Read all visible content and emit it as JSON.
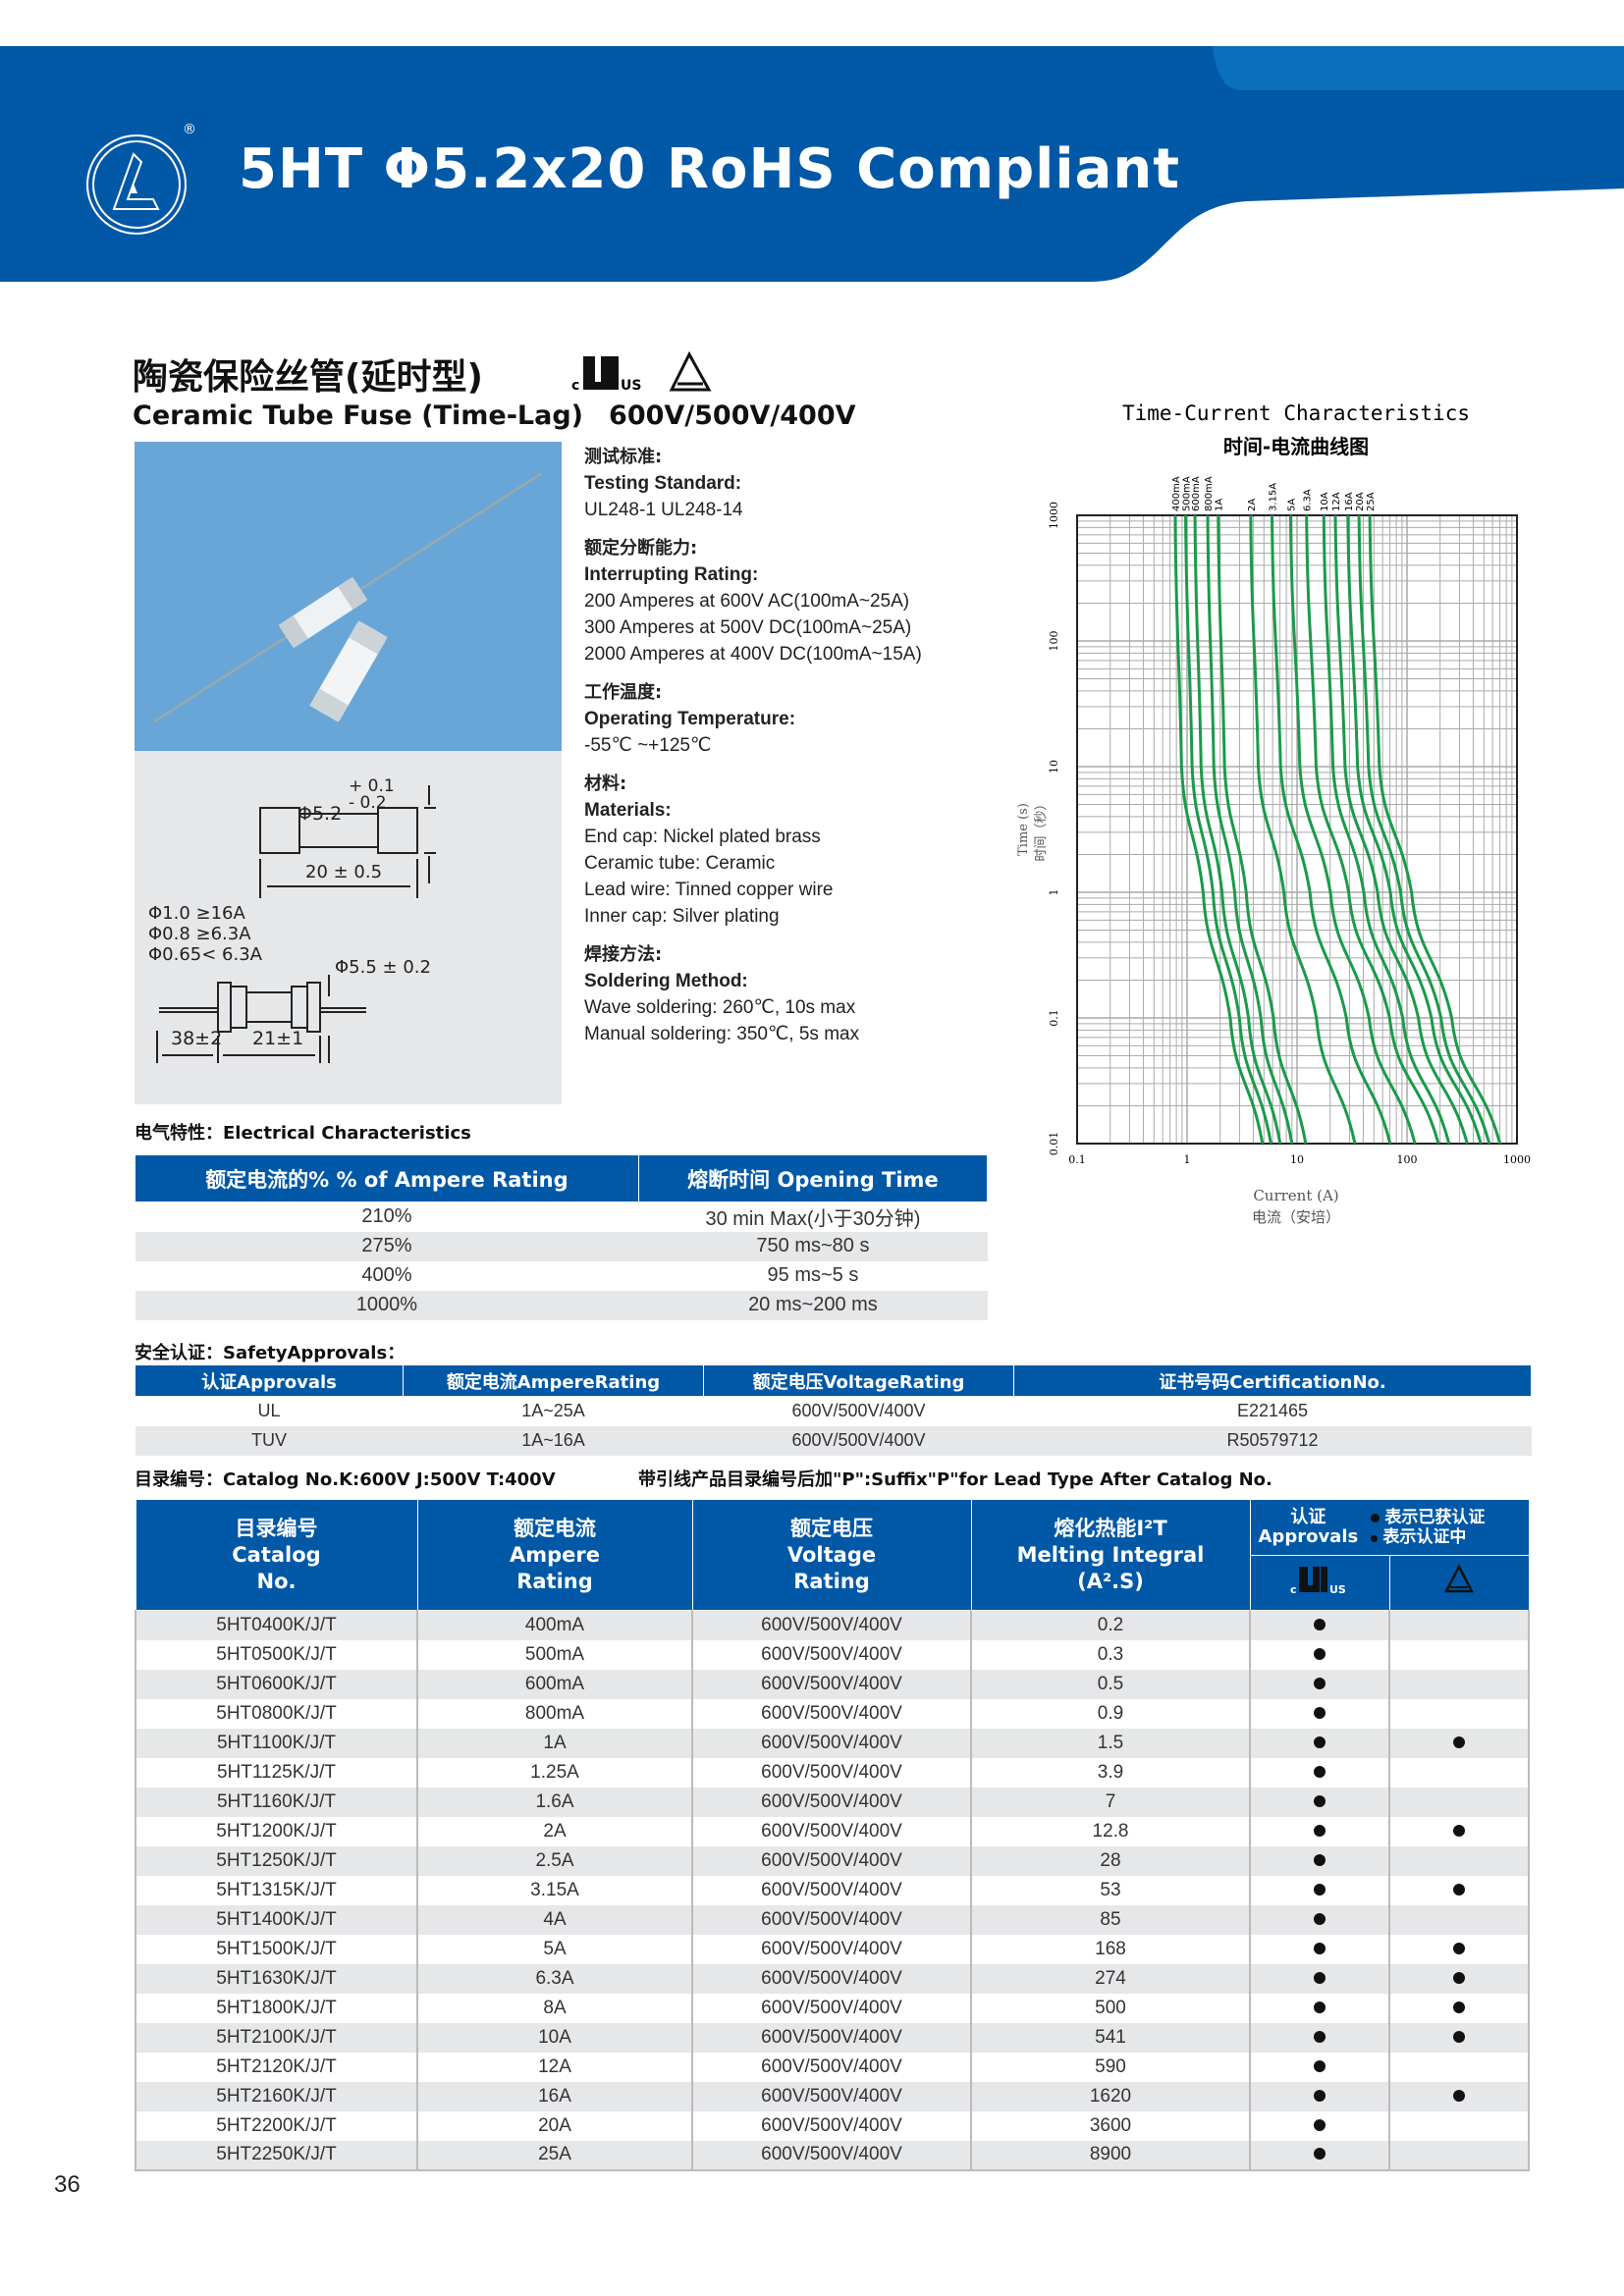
{
  "header": {
    "title": "5HT Φ5.2x20 RoHS Compliant",
    "brand_color": "#0058a6",
    "registered_mark": "®"
  },
  "product": {
    "title_cn": "陶瓷保险丝管(延时型)",
    "title_en": "Ceramic Tube Fuse (Time-Lag)",
    "voltage": "600V/500V/400V",
    "cert_icons": [
      "cUL-us-icon",
      "tuv-triangle-icon"
    ]
  },
  "drawing": {
    "dia_cap": "Φ5.2",
    "tol_plus": "+ 0.1",
    "tol_minus": "- 0.2",
    "length": "20 ± 0.5",
    "wire1": "Φ1.0 ≥16A",
    "wire2": "Φ0.8 ≥6.3A",
    "wire3": "Φ0.65< 6.3A",
    "dia_lead": "Φ5.5 ± 0.2",
    "lead_len": "38±2",
    "body_len": "21±1"
  },
  "specs": [
    {
      "cn": "测试标准:",
      "en": "Testing Standard:",
      "lines": [
        "UL248-1  UL248-14"
      ]
    },
    {
      "cn": "额定分断能力:",
      "en": "Interrupting  Rating:",
      "lines": [
        "200 Amperes at 600V AC(100mA~25A)",
        "300 Amperes at 500V DC(100mA~25A)",
        "2000 Amperes at 400V DC(100mA~15A)"
      ]
    },
    {
      "cn": "工作温度:",
      "en": "Operating  Temperature:",
      "lines": [
        "-55℃ ~+125℃"
      ]
    },
    {
      "cn": "材料:",
      "en": "Materials:",
      "lines": [
        "End cap: Nickel plated brass",
        "Ceramic tube: Ceramic",
        "Lead wire: Tinned copper wire",
        "Inner cap: Silver plating"
      ]
    },
    {
      "cn": "焊接方法:",
      "en": "Soldering Method:",
      "lines": [
        "Wave soldering: 260℃, 10s max",
        "Manual soldering: 350℃, 5s max"
      ]
    }
  ],
  "chart_data": {
    "type": "line",
    "title": "Time-Current Characteristics",
    "subtitle": "时间-电流曲线图",
    "xlabel": "Current (A)",
    "xlabel_cn": "电流（安培）",
    "ylabel": "Time (s)",
    "ylabel_cn": "时间（秒）",
    "x_scale": "log",
    "y_scale": "log",
    "xlim": [
      0.1,
      1000
    ],
    "ylim": [
      0.01,
      1000
    ],
    "x_ticks": [
      "0.1",
      "1",
      "10",
      "100",
      "1000"
    ],
    "y_ticks": [
      "0.01",
      "0.1",
      "1",
      "10",
      "100",
      "1000"
    ],
    "grid": true,
    "line_color": "#1a9a4a",
    "time_points": [
      1000,
      10,
      1,
      0.1,
      0.01
    ],
    "series": [
      {
        "name": "400mA",
        "current": [
          0.78,
          0.89,
          1.4,
          2.47,
          4.85
        ]
      },
      {
        "name": "500mA",
        "current": [
          0.97,
          1.11,
          1.72,
          2.99,
          5.79
        ]
      },
      {
        "name": "600mA",
        "current": [
          1.18,
          1.34,
          2.08,
          3.62,
          7.02
        ]
      },
      {
        "name": "800mA",
        "current": [
          1.54,
          1.75,
          2.71,
          4.69,
          8.99
        ]
      },
      {
        "name": "1A",
        "current": [
          1.92,
          2.19,
          3.45,
          6.1,
          12.0
        ]
      },
      {
        "name": "2A",
        "current": [
          3.79,
          4.44,
          7.6,
          15.0,
          33.6
        ]
      },
      {
        "name": "3.15A",
        "current": [
          5.92,
          7.08,
          13.1,
          28.1,
          70.2
        ]
      },
      {
        "name": "5A",
        "current": [
          8.74,
          10.6,
          20.1,
          45.2,
          118
        ]
      },
      {
        "name": "6.3A",
        "current": [
          12.2,
          14.9,
          29.5,
          69.5,
          193
        ]
      },
      {
        "name": "10A",
        "current": [
          17.5,
          21.2,
          40.5,
          91.4,
          241
        ]
      },
      {
        "name": "12A",
        "current": [
          22.3,
          27.3,
          54.0,
          127,
          353
        ]
      },
      {
        "name": "16A",
        "current": [
          29.0,
          35.5,
          70.6,
          167,
          469
        ]
      },
      {
        "name": "20A",
        "current": [
          36.6,
          44.7,
          87.5,
          204,
          560
        ]
      },
      {
        "name": "25A",
        "current": [
          45.9,
          56.0,
          110,
          255,
          700
        ]
      }
    ]
  },
  "electrical": {
    "label": "电气特性：Electrical Characteristics",
    "headers": [
      "额定电流的%  % of Ampere Rating",
      "熔断时间 Opening Time"
    ],
    "rows": [
      [
        "210%",
        "30 min Max(小于30分钟)"
      ],
      [
        "275%",
        "750 ms~80 s"
      ],
      [
        "400%",
        "95 ms~5 s"
      ],
      [
        "1000%",
        "20 ms~200 ms"
      ]
    ]
  },
  "safety": {
    "label": "安全认证：SafetyApprovals：",
    "headers": [
      "认证Approvals",
      "额定电流AmpereRating",
      "额定电压VoltageRating",
      "证书号码CertificationNo."
    ],
    "rows": [
      [
        "UL",
        "1A~25A",
        "600V/500V/400V",
        "E221465"
      ],
      [
        "TUV",
        "1A~16A",
        "600V/500V/400V",
        "R50579712"
      ]
    ]
  },
  "catalog_note": {
    "left": "目录编号：Catalog No.K:600V J:500V  T:400V",
    "right": "带引线产品目录编号后加\"P\":Suffix\"P\"for Lead Type After Catalog No."
  },
  "main_table": {
    "headers": {
      "catalog": [
        "目录编号",
        "Catalog",
        "No."
      ],
      "ampere": [
        "额定电流",
        "Ampere",
        "Rating"
      ],
      "voltage": [
        "额定电压",
        "Voltage",
        "Rating"
      ],
      "melting": [
        "熔化热能I²T",
        "Melting Integral",
        "(A².S)"
      ],
      "approvals": [
        "认证",
        "Approvals"
      ],
      "legend": [
        "表示已获认证",
        "表示认证中"
      ]
    },
    "rows": [
      {
        "cat": "5HT0400K/J/T",
        "amp": "400mA",
        "volt": "600V/500V/400V",
        "i2t": "0.2",
        "ul": true,
        "tuv": false
      },
      {
        "cat": "5HT0500K/J/T",
        "amp": "500mA",
        "volt": "600V/500V/400V",
        "i2t": "0.3",
        "ul": true,
        "tuv": false
      },
      {
        "cat": "5HT0600K/J/T",
        "amp": "600mA",
        "volt": "600V/500V/400V",
        "i2t": "0.5",
        "ul": true,
        "tuv": false
      },
      {
        "cat": "5HT0800K/J/T",
        "amp": "800mA",
        "volt": "600V/500V/400V",
        "i2t": "0.9",
        "ul": true,
        "tuv": false
      },
      {
        "cat": "5HT1100K/J/T",
        "amp": "1A",
        "volt": "600V/500V/400V",
        "i2t": "1.5",
        "ul": true,
        "tuv": true
      },
      {
        "cat": "5HT1125K/J/T",
        "amp": "1.25A",
        "volt": "600V/500V/400V",
        "i2t": "3.9",
        "ul": true,
        "tuv": false
      },
      {
        "cat": "5HT1160K/J/T",
        "amp": "1.6A",
        "volt": "600V/500V/400V",
        "i2t": "7",
        "ul": true,
        "tuv": false
      },
      {
        "cat": "5HT1200K/J/T",
        "amp": "2A",
        "volt": "600V/500V/400V",
        "i2t": "12.8",
        "ul": true,
        "tuv": true
      },
      {
        "cat": "5HT1250K/J/T",
        "amp": "2.5A",
        "volt": "600V/500V/400V",
        "i2t": "28",
        "ul": true,
        "tuv": false
      },
      {
        "cat": "5HT1315K/J/T",
        "amp": "3.15A",
        "volt": "600V/500V/400V",
        "i2t": "53",
        "ul": true,
        "tuv": true
      },
      {
        "cat": "5HT1400K/J/T",
        "amp": "4A",
        "volt": "600V/500V/400V",
        "i2t": "85",
        "ul": true,
        "tuv": false
      },
      {
        "cat": "5HT1500K/J/T",
        "amp": "5A",
        "volt": "600V/500V/400V",
        "i2t": "168",
        "ul": true,
        "tuv": true
      },
      {
        "cat": "5HT1630K/J/T",
        "amp": "6.3A",
        "volt": "600V/500V/400V",
        "i2t": "274",
        "ul": true,
        "tuv": true
      },
      {
        "cat": "5HT1800K/J/T",
        "amp": "8A",
        "volt": "600V/500V/400V",
        "i2t": "500",
        "ul": true,
        "tuv": true
      },
      {
        "cat": "5HT2100K/J/T",
        "amp": "10A",
        "volt": "600V/500V/400V",
        "i2t": "541",
        "ul": true,
        "tuv": true
      },
      {
        "cat": "5HT2120K/J/T",
        "amp": "12A",
        "volt": "600V/500V/400V",
        "i2t": "590",
        "ul": true,
        "tuv": false
      },
      {
        "cat": "5HT2160K/J/T",
        "amp": "16A",
        "volt": "600V/500V/400V",
        "i2t": "1620",
        "ul": true,
        "tuv": true
      },
      {
        "cat": "5HT2200K/J/T",
        "amp": "20A",
        "volt": "600V/500V/400V",
        "i2t": "3600",
        "ul": true,
        "tuv": false
      },
      {
        "cat": "5HT2250K/J/T",
        "amp": "25A",
        "volt": "600V/500V/400V",
        "i2t": "8900",
        "ul": true,
        "tuv": false
      }
    ]
  },
  "page_number": "36"
}
